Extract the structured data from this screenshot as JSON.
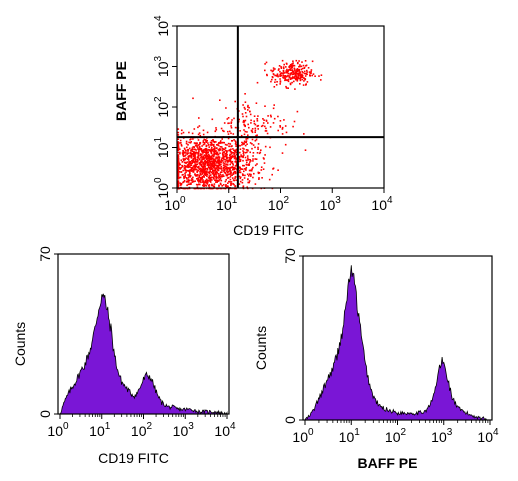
{
  "chart_data": [
    {
      "type": "scatter",
      "xlabel": "CD19  FITC",
      "ylabel": "BAFF PE",
      "x_scale": "log",
      "y_scale": "log",
      "xlim": [
        1,
        10000
      ],
      "ylim": [
        1,
        10000
      ],
      "quadrant_gates": {
        "x": 15,
        "y": 18
      },
      "point_color": "#ff0000",
      "clusters": [
        {
          "center": [
            4,
            4
          ],
          "spread_decades": [
            0.45,
            0.35
          ],
          "count": 1500
        },
        {
          "center": [
            160,
            700
          ],
          "spread_decades": [
            0.2,
            0.15
          ],
          "count": 260
        },
        {
          "center": [
            30,
            40
          ],
          "spread_decades": [
            0.35,
            0.3
          ],
          "count": 140
        }
      ],
      "x_ticks": [
        "10^0",
        "10^1",
        "10^2",
        "10^3",
        "10^4"
      ],
      "y_ticks": [
        "10^0",
        "10^1",
        "10^2",
        "10^3",
        "10^4"
      ]
    },
    {
      "type": "area",
      "xlabel": "CD19  FITC",
      "ylabel": "Counts",
      "x_scale": "log",
      "xlim": [
        1,
        10000
      ],
      "ylim": [
        0,
        70
      ],
      "y_ticks": [
        0,
        70
      ],
      "x_ticks": [
        "10^0",
        "10^1",
        "10^2",
        "10^3",
        "10^4"
      ],
      "fill_color": "#7a16d6",
      "x": [
        1,
        1.2,
        1.5,
        2,
        2.5,
        3,
        4,
        5,
        6,
        7,
        8,
        9,
        10,
        12,
        14,
        17,
        20,
        25,
        30,
        40,
        50,
        60,
        70,
        80,
        100,
        120,
        150,
        180,
        220,
        270,
        330,
        400,
        500,
        700,
        1000,
        1500,
        2000,
        3000,
        5000,
        10000
      ],
      "values": [
        0,
        4,
        8,
        12,
        15,
        18,
        22,
        27,
        32,
        38,
        44,
        48,
        52,
        50,
        44,
        36,
        26,
        18,
        14,
        11,
        9,
        8,
        9,
        11,
        15,
        17,
        16,
        12,
        8,
        5,
        4,
        3,
        3,
        2,
        2,
        2,
        1,
        1,
        1,
        0
      ]
    },
    {
      "type": "area",
      "xlabel": "BAFF PE",
      "ylabel": "Counts",
      "x_scale": "log",
      "xlim": [
        1,
        10000
      ],
      "ylim": [
        0,
        70
      ],
      "y_ticks": [
        0,
        70
      ],
      "x_ticks": [
        "10^0",
        "10^1",
        "10^2",
        "10^3",
        "10^4"
      ],
      "fill_color": "#7a16d6",
      "x": [
        1,
        1.3,
        1.6,
        2,
        2.5,
        3,
        4,
        5,
        6,
        7,
        8,
        9,
        10,
        12,
        14,
        17,
        20,
        25,
        30,
        40,
        50,
        70,
        100,
        150,
        200,
        300,
        400,
        500,
        600,
        700,
        800,
        900,
        1000,
        1200,
        1500,
        2000,
        3000,
        4000,
        6000,
        10000
      ],
      "values": [
        0,
        2,
        5,
        9,
        13,
        17,
        22,
        28,
        35,
        42,
        52,
        60,
        64,
        58,
        46,
        34,
        24,
        15,
        10,
        6,
        5,
        4,
        3,
        3,
        3,
        3,
        4,
        6,
        10,
        16,
        22,
        25,
        24,
        18,
        10,
        5,
        3,
        2,
        1,
        0
      ]
    }
  ]
}
